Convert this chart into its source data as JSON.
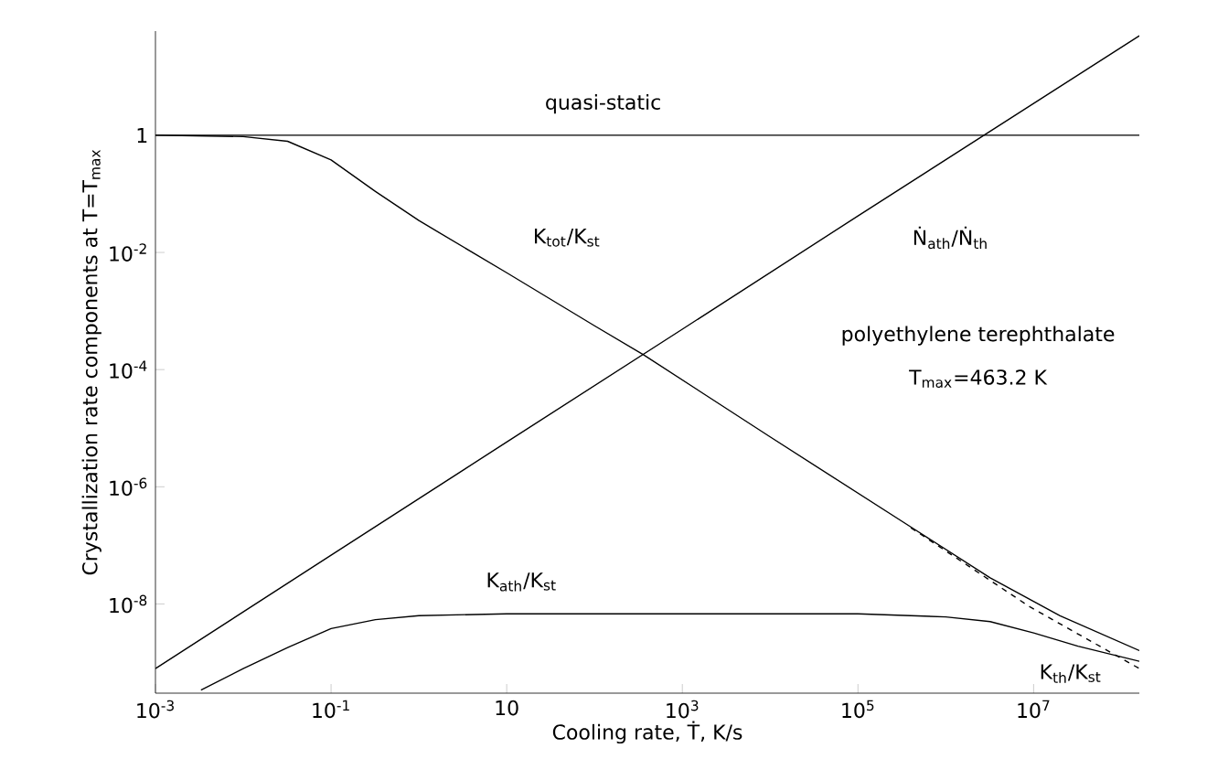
{
  "chart_data": {
    "type": "line",
    "log": "xy",
    "line_style": "solid",
    "xlabel": "Cooling rate, Ṫ, K/s",
    "ylabel": "Crystallization rate components at T=T$_{max}$",
    "xlim": [
      0.001,
      160000000.0
    ],
    "ylim": [
      3e-10,
      60
    ],
    "xticks": [
      {
        "value": 0.001,
        "label": "10$^{-3}$"
      },
      {
        "value": 0.1,
        "label": "10$^{-1}$"
      },
      10,
      {
        "value": 1000,
        "label": "10$^{3}$"
      },
      {
        "value": 100000,
        "label": "10$^{5}$"
      },
      {
        "value": 10000000,
        "label": "10$^{7}$"
      }
    ],
    "yticks": [
      {
        "value": 1e-08,
        "label": "10$^{-8}$"
      },
      {
        "value": 1e-06,
        "label": "10$^{-6}$"
      },
      {
        "value": 0.0001,
        "label": "10$^{-4}$"
      },
      {
        "value": 0.01,
        "label": "10$^{-2}$"
      },
      1
    ],
    "series": [
      {
        "name": "quasi-static",
        "color": "#000000",
        "x": [
          0.001,
          160000000.0
        ],
        "values": [
          1,
          1
        ]
      },
      {
        "name": "K$_{tot}$/K$_{st}$",
        "color": "#000000",
        "x": [
          0.001,
          0.01,
          0.032,
          0.1,
          0.32,
          1,
          10,
          100,
          360,
          10000,
          460000,
          3200000,
          20000000,
          160000000.0
        ],
        "values": [
          1,
          0.95,
          0.79,
          0.38,
          0.11,
          0.035,
          0.0045,
          0.00056,
          0.00018,
          7.1e-06,
          1.8e-07,
          2.8e-08,
          6.3e-09,
          1.6e-09
        ]
      },
      {
        "name": "Ṅ$_{ath}$/Ṅ$_{th}$",
        "color": "#000000",
        "x": [
          0.001,
          0.1,
          10,
          1000,
          100000,
          10000000,
          160000000.0
        ],
        "values": [
          7.9e-10,
          6.8e-08,
          5.8e-06,
          0.00049,
          0.042,
          3.5,
          50
        ]
      },
      {
        "name": "K$_{ath}$/K$_{st}$",
        "color": "#000000",
        "x": [
          0.0033,
          0.01,
          0.032,
          0.1,
          0.32,
          1,
          10,
          100000,
          1000000,
          3200000,
          10000000,
          32000000,
          160000000.0
        ],
        "values": [
          3.4e-10,
          7.9e-10,
          1.8e-09,
          3.8e-09,
          5.4e-09,
          6.3e-09,
          6.8e-09,
          6.8e-09,
          6e-09,
          5e-09,
          3.2e-09,
          1.9e-09,
          1.05e-09
        ]
      },
      {
        "name": "K$_{th}$/K$_{st}$",
        "color": "#000000",
        "line_style": "dashed",
        "x": [
          400000,
          9100000,
          160000000.0
        ],
        "values": [
          2e-07,
          8.9e-09,
          7.9e-10
        ]
      }
    ],
    "annotations": [
      "polyethylene terephthalate",
      "T$_{max}$=463.2 K"
    ]
  }
}
